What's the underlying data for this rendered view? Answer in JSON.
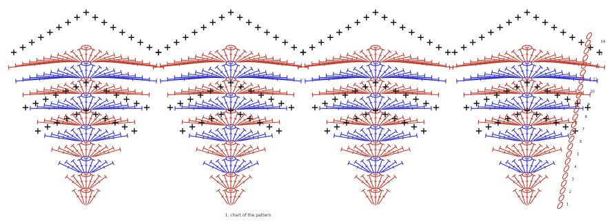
{
  "diagram": {
    "type": "crochet-stitch-chart",
    "motif_count": 4,
    "colors": {
      "treble": "#c0392b",
      "treble_alt": "#2b2bd8",
      "single_crochet": "#111111",
      "chain": "#c0392b",
      "background": "#ffffff"
    },
    "row_colors": [
      "red",
      "red",
      "blue",
      "red",
      "blue",
      "red",
      "blue",
      "red",
      "blue",
      "red"
    ],
    "top_row_stitch": "single-crochet-plus",
    "turning_chain_stitch": "chain-oval"
  },
  "row_numbers": [
    "14",
    "13",
    "12",
    "11",
    "10",
    "9",
    "8",
    "7",
    "6",
    "5",
    "4",
    "3",
    "2",
    "1"
  ],
  "caption": "1. chart of the pattern"
}
